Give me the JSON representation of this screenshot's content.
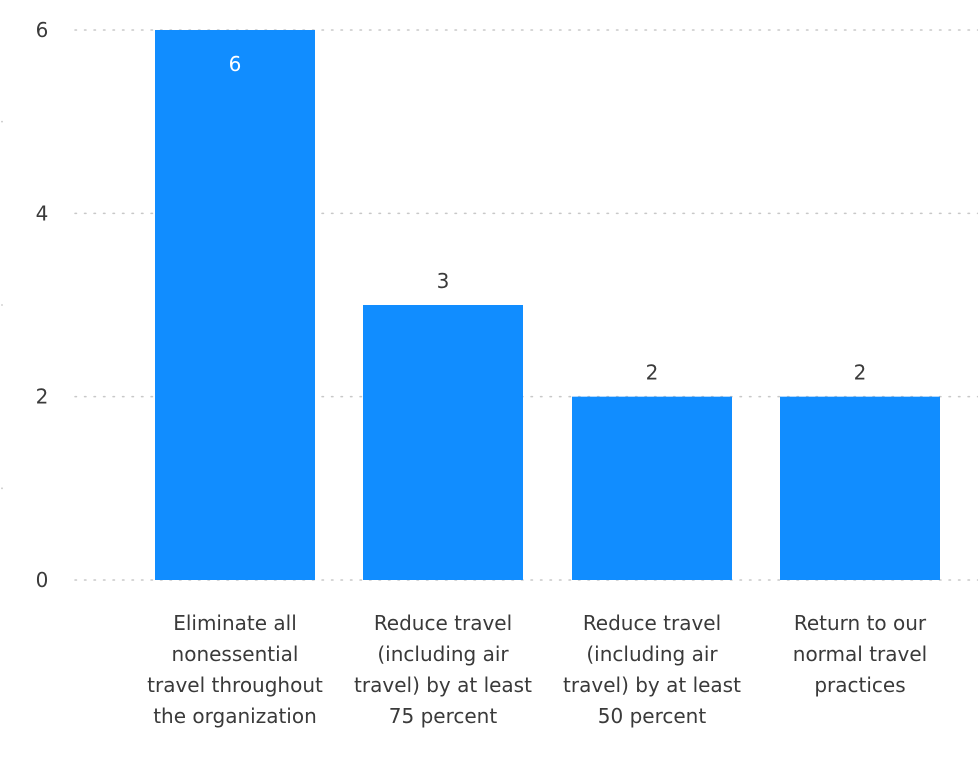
{
  "chart_data": {
    "type": "bar",
    "categories": [
      "Eliminate all nonessential travel throughout the organization",
      "Reduce travel (including air travel) by at least 75 percent",
      "Reduce travel (including air travel) by at least 50 percent",
      "Return to our normal travel practices"
    ],
    "values": [
      6,
      3,
      2,
      2
    ],
    "data_labels": [
      "6",
      "3",
      "2",
      "2"
    ],
    "y_ticks": [
      "0",
      "2",
      "4",
      "6"
    ],
    "ylim": [
      0,
      6
    ],
    "grid": true,
    "grid_style": "dotted",
    "bar_color": "#118DFF",
    "label_inside_color": "#ffffff",
    "label_outside_color": "#3a3a3a",
    "grid_color": "#c8c8c8"
  }
}
